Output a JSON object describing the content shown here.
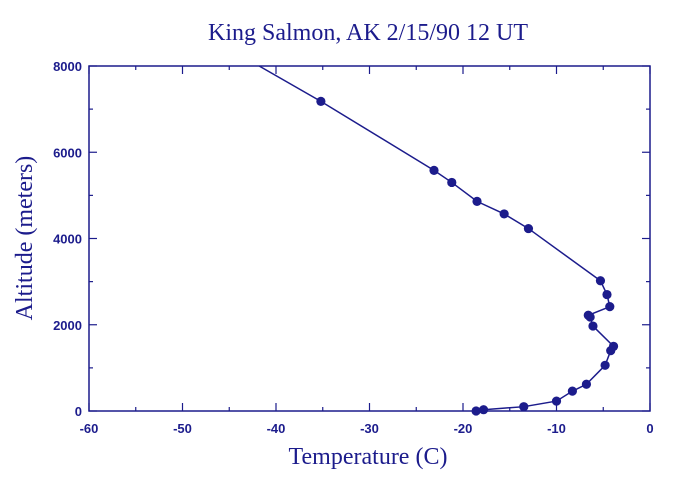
{
  "chart_data": {
    "type": "line",
    "title": "King Salmon, AK 2/15/90 12 UT",
    "xlabel": "Temperature (C)",
    "ylabel": "Altitude (meters)",
    "xlim": [
      -60,
      0
    ],
    "ylim": [
      0,
      8000
    ],
    "x_ticks": [
      -60,
      -50,
      -40,
      -30,
      -20,
      -10,
      0
    ],
    "y_ticks": [
      0,
      2000,
      4000,
      6000,
      8000
    ],
    "grid": false,
    "series": [
      {
        "points": [
          {
            "x": -18.6,
            "y": 0
          },
          {
            "x": -17.8,
            "y": 30
          },
          {
            "x": -13.5,
            "y": 100
          },
          {
            "x": -10.0,
            "y": 230
          },
          {
            "x": -8.3,
            "y": 460
          },
          {
            "x": -6.8,
            "y": 620
          },
          {
            "x": -4.8,
            "y": 1060
          },
          {
            "x": -4.2,
            "y": 1400
          },
          {
            "x": -3.9,
            "y": 1500
          },
          {
            "x": -6.1,
            "y": 1970
          },
          {
            "x": -6.4,
            "y": 2180
          },
          {
            "x": -6.6,
            "y": 2220
          },
          {
            "x": -4.3,
            "y": 2420
          },
          {
            "x": -4.6,
            "y": 2700
          },
          {
            "x": -5.3,
            "y": 3020
          },
          {
            "x": -13.0,
            "y": 4230
          },
          {
            "x": -15.6,
            "y": 4570
          },
          {
            "x": -18.5,
            "y": 4860
          },
          {
            "x": -21.2,
            "y": 5300
          },
          {
            "x": -23.1,
            "y": 5580
          },
          {
            "x": -35.2,
            "y": 7180
          },
          {
            "x": -41.8,
            "y": 8000,
            "marker": false
          }
        ]
      }
    ]
  }
}
